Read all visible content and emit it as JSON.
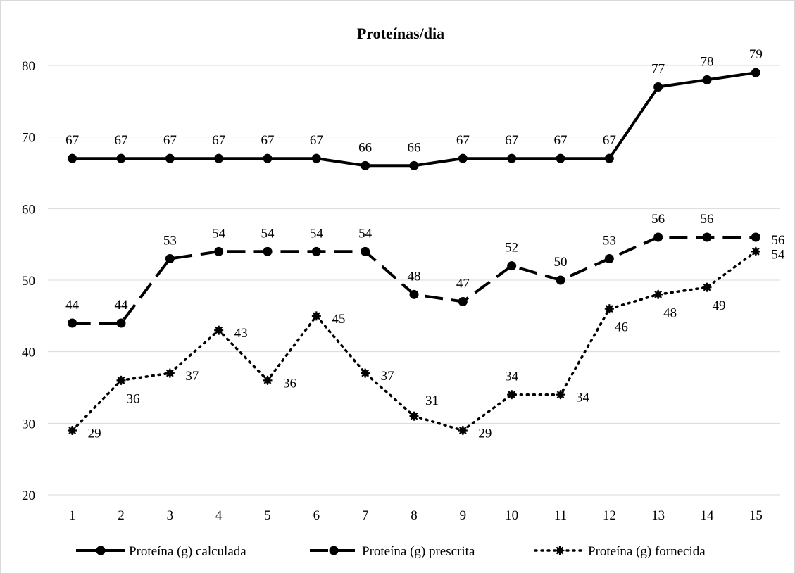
{
  "chart_data": {
    "type": "line",
    "title": "Proteínas/dia",
    "xlabel": "",
    "ylabel": "",
    "categories": [
      "1",
      "2",
      "3",
      "4",
      "5",
      "6",
      "7",
      "8",
      "9",
      "10",
      "11",
      "12",
      "13",
      "14",
      "15"
    ],
    "ylim": [
      20,
      80
    ],
    "yticks": [
      20,
      30,
      40,
      50,
      60,
      70,
      80
    ],
    "grid": true,
    "legend_position": "bottom",
    "series": [
      {
        "name": "Proteína (g) calculada",
        "style": "solid",
        "color": "#000000",
        "values": [
          67,
          67,
          67,
          67,
          67,
          67,
          66,
          66,
          67,
          67,
          67,
          67,
          77,
          78,
          79
        ],
        "label_position": [
          "above",
          "above",
          "above",
          "above",
          "above",
          "above",
          "above",
          "above",
          "above",
          "above",
          "above",
          "above",
          "above",
          "above",
          "above"
        ]
      },
      {
        "name": "Proteína (g) prescrita",
        "style": "dashed",
        "color": "#000000",
        "values": [
          44,
          44,
          53,
          54,
          54,
          54,
          54,
          48,
          47,
          52,
          50,
          53,
          56,
          56,
          56
        ],
        "label_position": [
          "above",
          "above",
          "above",
          "above",
          "above",
          "above",
          "above",
          "above",
          "above",
          "above",
          "above",
          "above",
          "above",
          "above",
          "right"
        ]
      },
      {
        "name": "Proteína (g) fornecida",
        "style": "dotted",
        "color": "#000000",
        "values": [
          29,
          36,
          37,
          43,
          36,
          45,
          37,
          31,
          29,
          34,
          34,
          46,
          48,
          49,
          54
        ],
        "label_position": [
          "right",
          "below",
          "right",
          "right",
          "right",
          "right",
          "right",
          "above-right",
          "right",
          "above",
          "right",
          "below",
          "below",
          "below",
          "right"
        ]
      }
    ]
  }
}
